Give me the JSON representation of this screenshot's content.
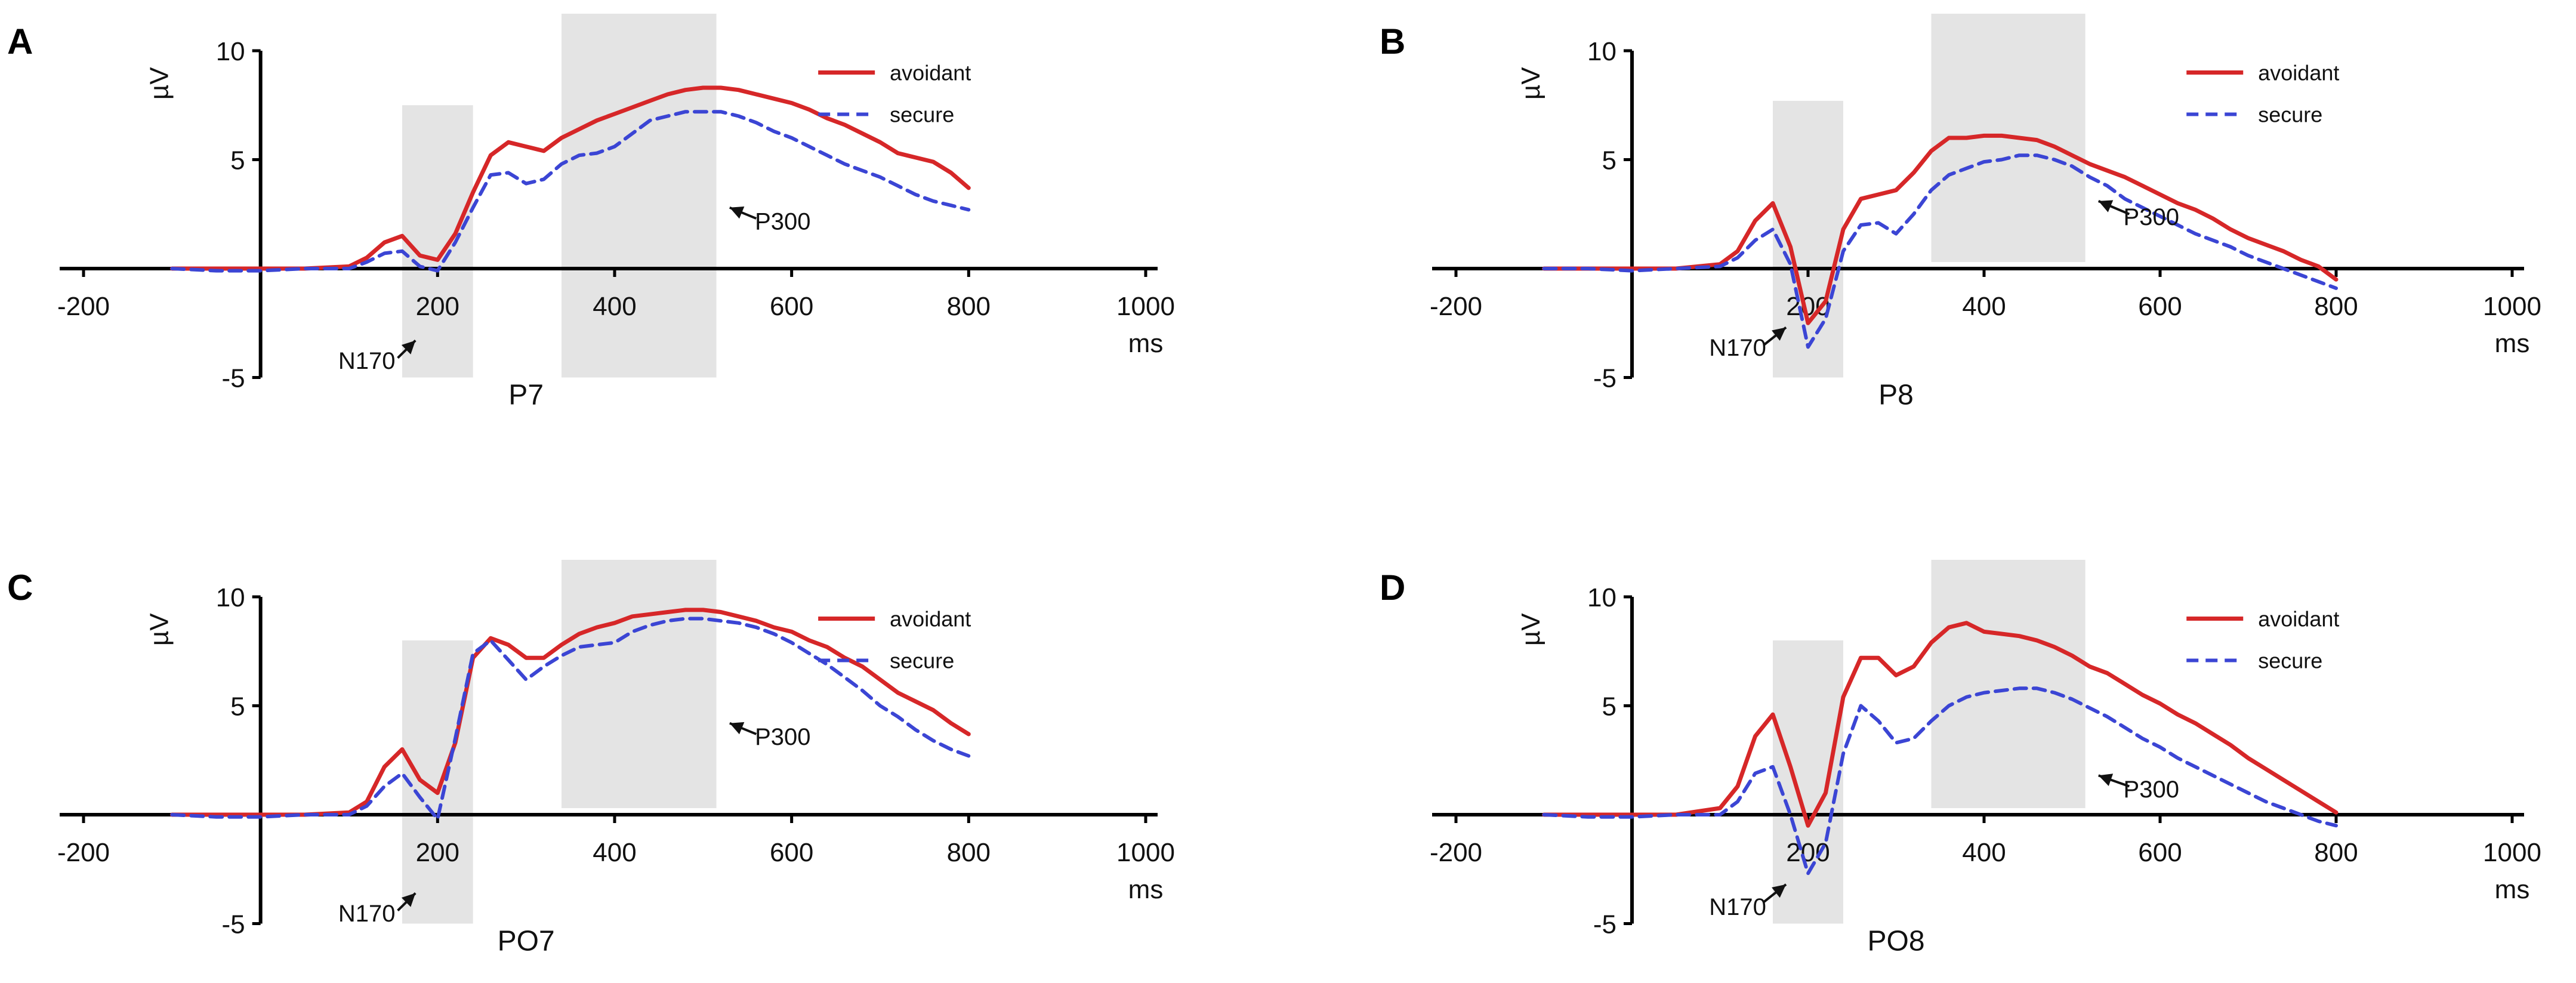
{
  "colors": {
    "avoidant": "#d62728",
    "secure": "#3b45d4",
    "shade": "#d9d9d9",
    "axis": "#000000"
  },
  "chart_data": [
    {
      "panel": "A",
      "type": "line",
      "title": "P7",
      "xlabel": "ms",
      "ylabel": "µV",
      "xlim": [
        -200,
        1000
      ],
      "ylim": [
        -5,
        10
      ],
      "xticks": [
        -200,
        200,
        400,
        600,
        800,
        1000
      ],
      "yticks": [
        -5,
        5,
        10
      ],
      "legend": {
        "position": "top-right",
        "entries": [
          "avoidant",
          "secure"
        ]
      },
      "shaded_windows": [
        {
          "x": [
            160,
            240
          ],
          "y": [
            -5,
            7.5
          ]
        },
        {
          "x": [
            340,
            515
          ],
          "y": [
            -5,
            11.7
          ]
        }
      ],
      "annotations": [
        {
          "label": "N170",
          "text_at": [
            120,
            -4.6
          ],
          "arrow_from": [
            155,
            -4.1
          ],
          "arrow_to": [
            175,
            -3.3
          ]
        },
        {
          "label": "P300",
          "text_at": [
            590,
            1.8
          ],
          "arrow_from": [
            560,
            2.3
          ],
          "arrow_to": [
            530,
            2.8
          ]
        }
      ],
      "series": [
        {
          "name": "avoidant",
          "style": "solid",
          "x": [
            -100,
            -50,
            0,
            50,
            100,
            120,
            140,
            160,
            180,
            200,
            220,
            240,
            260,
            280,
            300,
            320,
            340,
            360,
            380,
            400,
            420,
            440,
            460,
            480,
            500,
            520,
            540,
            560,
            580,
            600,
            620,
            640,
            660,
            680,
            700,
            720,
            740,
            760,
            780,
            800
          ],
          "y": [
            0,
            0,
            0,
            0,
            0.1,
            0.5,
            1.2,
            1.5,
            0.6,
            0.4,
            1.6,
            3.5,
            5.2,
            5.8,
            5.6,
            5.4,
            6.0,
            6.4,
            6.8,
            7.1,
            7.4,
            7.7,
            8.0,
            8.2,
            8.3,
            8.3,
            8.2,
            8.0,
            7.8,
            7.6,
            7.3,
            6.9,
            6.6,
            6.2,
            5.8,
            5.3,
            5.1,
            4.9,
            4.4,
            3.7
          ]
        },
        {
          "name": "secure",
          "style": "dashed",
          "x": [
            -100,
            -50,
            0,
            50,
            100,
            120,
            140,
            160,
            180,
            200,
            220,
            240,
            260,
            280,
            300,
            320,
            340,
            360,
            380,
            400,
            420,
            440,
            460,
            480,
            500,
            520,
            540,
            560,
            580,
            600,
            620,
            640,
            660,
            680,
            700,
            720,
            740,
            760,
            780,
            800
          ],
          "y": [
            0,
            -0.1,
            -0.1,
            0,
            0,
            0.3,
            0.7,
            0.8,
            0.1,
            -0.1,
            1.2,
            2.8,
            4.3,
            4.4,
            3.9,
            4.1,
            4.8,
            5.2,
            5.3,
            5.6,
            6.2,
            6.8,
            7.0,
            7.2,
            7.2,
            7.2,
            7.0,
            6.7,
            6.3,
            6.0,
            5.6,
            5.2,
            4.8,
            4.5,
            4.2,
            3.8,
            3.4,
            3.1,
            2.9,
            2.7
          ]
        }
      ]
    },
    {
      "panel": "B",
      "type": "line",
      "title": "P8",
      "xlabel": "ms",
      "ylabel": "µV",
      "xlim": [
        -200,
        1000
      ],
      "ylim": [
        -5,
        10
      ],
      "xticks": [
        -200,
        200,
        400,
        600,
        800,
        1000
      ],
      "yticks": [
        -5,
        5,
        10
      ],
      "legend": {
        "position": "top-right",
        "entries": [
          "avoidant",
          "secure"
        ]
      },
      "shaded_windows": [
        {
          "x": [
            160,
            240
          ],
          "y": [
            -5,
            7.7
          ]
        },
        {
          "x": [
            340,
            515
          ],
          "y": [
            0.3,
            11.7
          ]
        }
      ],
      "annotations": [
        {
          "label": "N170",
          "text_at": [
            120,
            -4.0
          ],
          "arrow_from": [
            150,
            -3.5
          ],
          "arrow_to": [
            175,
            -2.7
          ]
        },
        {
          "label": "P300",
          "text_at": [
            590,
            2.0
          ],
          "arrow_from": [
            565,
            2.5
          ],
          "arrow_to": [
            530,
            3.1
          ]
        }
      ],
      "series": [
        {
          "name": "avoidant",
          "style": "solid",
          "x": [
            -100,
            -50,
            0,
            50,
            100,
            120,
            140,
            160,
            180,
            200,
            220,
            240,
            260,
            280,
            300,
            320,
            340,
            360,
            380,
            400,
            420,
            440,
            460,
            480,
            500,
            520,
            540,
            560,
            580,
            600,
            620,
            640,
            660,
            680,
            700,
            720,
            740,
            760,
            780,
            800
          ],
          "y": [
            0,
            0,
            0,
            0,
            0.2,
            0.8,
            2.2,
            3.0,
            1.0,
            -2.5,
            -1.5,
            1.8,
            3.2,
            3.4,
            3.6,
            4.4,
            5.4,
            6.0,
            6.0,
            6.1,
            6.1,
            6.0,
            5.9,
            5.6,
            5.2,
            4.8,
            4.5,
            4.2,
            3.8,
            3.4,
            3.0,
            2.7,
            2.3,
            1.8,
            1.4,
            1.1,
            0.8,
            0.4,
            0.1,
            -0.5
          ]
        },
        {
          "name": "secure",
          "style": "dashed",
          "x": [
            -100,
            -50,
            0,
            50,
            100,
            120,
            140,
            160,
            180,
            200,
            220,
            240,
            260,
            280,
            300,
            320,
            340,
            360,
            380,
            400,
            420,
            440,
            460,
            480,
            500,
            520,
            540,
            560,
            580,
            600,
            620,
            640,
            660,
            680,
            700,
            720,
            740,
            760,
            780,
            800
          ],
          "y": [
            0,
            0,
            -0.1,
            0,
            0.1,
            0.5,
            1.3,
            1.8,
            0.2,
            -3.6,
            -2.3,
            0.8,
            2.0,
            2.1,
            1.6,
            2.5,
            3.6,
            4.3,
            4.6,
            4.9,
            5.0,
            5.2,
            5.2,
            5.0,
            4.7,
            4.2,
            3.8,
            3.2,
            2.8,
            2.4,
            2.0,
            1.6,
            1.3,
            1.0,
            0.6,
            0.3,
            0.0,
            -0.3,
            -0.6,
            -0.9
          ]
        }
      ]
    },
    {
      "panel": "C",
      "type": "line",
      "title": "PO7",
      "xlabel": "ms",
      "ylabel": "µV",
      "xlim": [
        -200,
        1000
      ],
      "ylim": [
        -5,
        10
      ],
      "xticks": [
        -200,
        200,
        400,
        600,
        800,
        1000
      ],
      "yticks": [
        -5,
        5,
        10
      ],
      "legend": {
        "position": "top-right",
        "entries": [
          "avoidant",
          "secure"
        ]
      },
      "shaded_windows": [
        {
          "x": [
            160,
            240
          ],
          "y": [
            -5,
            8.0
          ]
        },
        {
          "x": [
            340,
            515
          ],
          "y": [
            0.3,
            11.7
          ]
        }
      ],
      "annotations": [
        {
          "label": "N170",
          "text_at": [
            120,
            -4.9
          ],
          "arrow_from": [
            155,
            -4.4
          ],
          "arrow_to": [
            175,
            -3.6
          ]
        },
        {
          "label": "P300",
          "text_at": [
            590,
            3.2
          ],
          "arrow_from": [
            560,
            3.7
          ],
          "arrow_to": [
            530,
            4.2
          ]
        }
      ],
      "series": [
        {
          "name": "avoidant",
          "style": "solid",
          "x": [
            -100,
            -50,
            0,
            50,
            100,
            120,
            140,
            160,
            180,
            200,
            220,
            240,
            260,
            280,
            300,
            320,
            340,
            360,
            380,
            400,
            420,
            440,
            460,
            480,
            500,
            520,
            540,
            560,
            580,
            600,
            620,
            640,
            660,
            680,
            700,
            720,
            740,
            760,
            780,
            800
          ],
          "y": [
            0,
            0,
            0,
            0,
            0.1,
            0.6,
            2.2,
            3.0,
            1.6,
            1.0,
            3.3,
            7.2,
            8.1,
            7.8,
            7.2,
            7.2,
            7.8,
            8.3,
            8.6,
            8.8,
            9.1,
            9.2,
            9.3,
            9.4,
            9.4,
            9.3,
            9.1,
            8.9,
            8.6,
            8.4,
            8.0,
            7.7,
            7.2,
            6.8,
            6.2,
            5.6,
            5.2,
            4.8,
            4.2,
            3.7
          ]
        },
        {
          "name": "secure",
          "style": "dashed",
          "x": [
            -100,
            -50,
            0,
            50,
            100,
            120,
            140,
            160,
            180,
            200,
            220,
            240,
            260,
            280,
            300,
            320,
            340,
            360,
            380,
            400,
            420,
            440,
            460,
            480,
            500,
            520,
            540,
            560,
            580,
            600,
            620,
            640,
            660,
            680,
            700,
            720,
            740,
            760,
            780,
            800
          ],
          "y": [
            0,
            -0.1,
            -0.1,
            0,
            0,
            0.4,
            1.3,
            1.9,
            0.8,
            -0.2,
            3.5,
            7.4,
            8.0,
            7.1,
            6.2,
            6.8,
            7.3,
            7.7,
            7.8,
            7.9,
            8.4,
            8.7,
            8.9,
            9.0,
            9.0,
            8.9,
            8.8,
            8.6,
            8.3,
            7.9,
            7.4,
            6.9,
            6.3,
            5.7,
            5.0,
            4.5,
            3.9,
            3.4,
            3.0,
            2.7
          ]
        }
      ]
    },
    {
      "panel": "D",
      "type": "line",
      "title": "PO8",
      "xlabel": "ms",
      "ylabel": "µV",
      "xlim": [
        -200,
        1000
      ],
      "ylim": [
        -5,
        10
      ],
      "xticks": [
        -200,
        200,
        400,
        600,
        800,
        1000
      ],
      "yticks": [
        -5,
        5,
        10
      ],
      "legend": {
        "position": "top-right",
        "entries": [
          "avoidant",
          "secure"
        ]
      },
      "shaded_windows": [
        {
          "x": [
            160,
            240
          ],
          "y": [
            -5,
            8.0
          ]
        },
        {
          "x": [
            340,
            515
          ],
          "y": [
            0.3,
            11.7
          ]
        }
      ],
      "annotations": [
        {
          "label": "N170",
          "text_at": [
            120,
            -4.6
          ],
          "arrow_from": [
            150,
            -4.0
          ],
          "arrow_to": [
            175,
            -3.2
          ]
        },
        {
          "label": "P300",
          "text_at": [
            590,
            0.8
          ],
          "arrow_from": [
            565,
            1.3
          ],
          "arrow_to": [
            530,
            1.8
          ]
        }
      ],
      "series": [
        {
          "name": "avoidant",
          "style": "solid",
          "x": [
            -100,
            -50,
            0,
            50,
            100,
            120,
            140,
            160,
            180,
            200,
            220,
            240,
            260,
            280,
            300,
            320,
            340,
            360,
            380,
            400,
            420,
            440,
            460,
            480,
            500,
            520,
            540,
            560,
            580,
            600,
            620,
            640,
            660,
            680,
            700,
            720,
            740,
            760,
            780,
            800
          ],
          "y": [
            0,
            0,
            0,
            0,
            0.3,
            1.3,
            3.6,
            4.6,
            2.2,
            -0.5,
            1.0,
            5.4,
            7.2,
            7.2,
            6.4,
            6.8,
            7.9,
            8.6,
            8.8,
            8.4,
            8.3,
            8.2,
            8.0,
            7.7,
            7.3,
            6.8,
            6.5,
            6.0,
            5.5,
            5.1,
            4.6,
            4.2,
            3.7,
            3.2,
            2.6,
            2.1,
            1.6,
            1.1,
            0.6,
            0.1
          ]
        },
        {
          "name": "secure",
          "style": "dashed",
          "x": [
            -100,
            -50,
            0,
            50,
            100,
            120,
            140,
            160,
            180,
            200,
            220,
            240,
            260,
            280,
            300,
            320,
            340,
            360,
            380,
            400,
            420,
            440,
            460,
            480,
            500,
            520,
            540,
            560,
            580,
            600,
            620,
            640,
            660,
            680,
            700,
            720,
            740,
            760,
            780,
            800
          ],
          "y": [
            0,
            -0.1,
            -0.1,
            0,
            0,
            0.6,
            1.9,
            2.2,
            0.0,
            -2.7,
            -1.3,
            2.8,
            5.0,
            4.3,
            3.3,
            3.5,
            4.3,
            5.0,
            5.4,
            5.6,
            5.7,
            5.8,
            5.8,
            5.6,
            5.3,
            4.9,
            4.5,
            4.0,
            3.5,
            3.1,
            2.6,
            2.2,
            1.8,
            1.4,
            1.0,
            0.6,
            0.3,
            0.0,
            -0.3,
            -0.5
          ]
        }
      ]
    }
  ]
}
